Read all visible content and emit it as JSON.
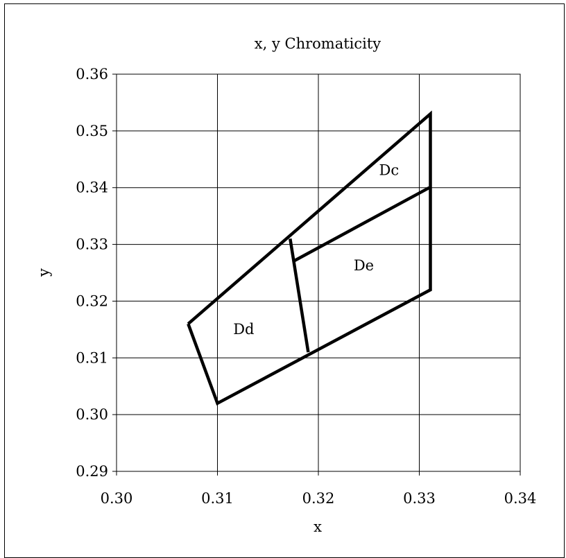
{
  "chart_data": {
    "type": "line",
    "title": "x, y Chromaticity",
    "xlabel": "x",
    "ylabel": "y",
    "xlim": [
      0.3,
      0.34
    ],
    "ylim": [
      0.29,
      0.36
    ],
    "x_ticks": [
      "0.30",
      "0.31",
      "0.32",
      "0.33",
      "0.34"
    ],
    "y_ticks": [
      "0.29",
      "0.30",
      "0.31",
      "0.32",
      "0.33",
      "0.34",
      "0.35",
      "0.36"
    ],
    "x_tick_values": [
      0.3,
      0.31,
      0.32,
      0.33,
      0.34
    ],
    "y_tick_values": [
      0.29,
      0.3,
      0.31,
      0.32,
      0.33,
      0.34,
      0.35,
      0.36
    ],
    "grid": true,
    "line_color": "#000000",
    "series": [
      {
        "points": [
          [
            0.3071,
            0.316
          ],
          [
            0.31,
            0.302
          ],
          [
            0.3311,
            0.322
          ],
          [
            0.3311,
            0.353
          ],
          [
            0.3071,
            0.316
          ]
        ]
      },
      {
        "points": [
          [
            0.3172,
            0.331
          ],
          [
            0.319,
            0.311
          ]
        ]
      },
      {
        "points": [
          [
            0.3175,
            0.327
          ],
          [
            0.331,
            0.34
          ]
        ]
      }
    ],
    "annotations": [
      {
        "text": "Dc",
        "x": 0.327,
        "y": 0.3422
      },
      {
        "text": "Dd",
        "x": 0.3126,
        "y": 0.3142
      },
      {
        "text": "De",
        "x": 0.3245,
        "y": 0.3254
      }
    ]
  }
}
